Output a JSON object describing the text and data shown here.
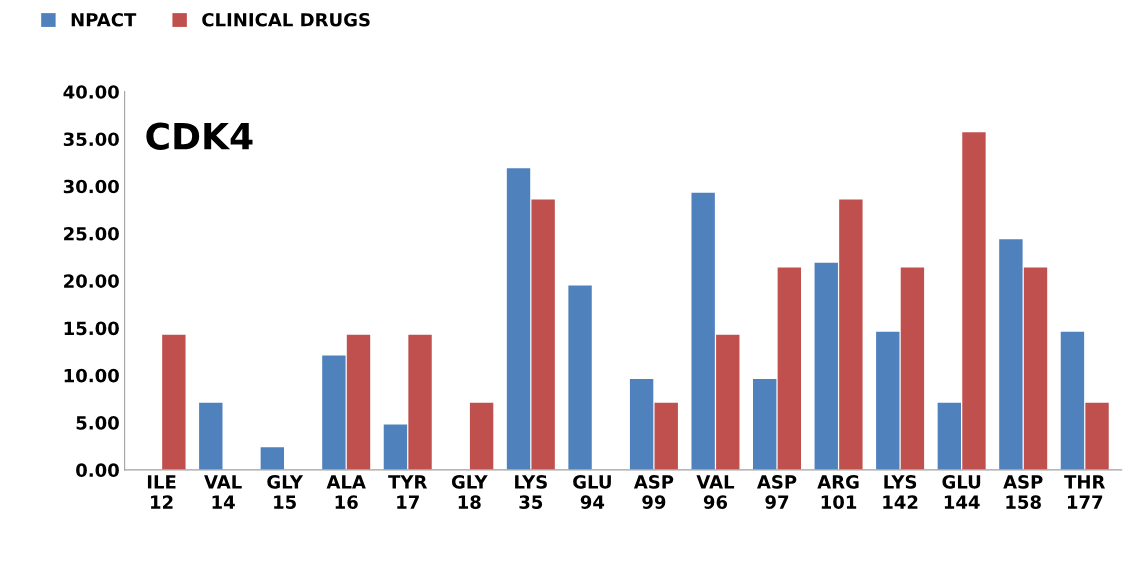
{
  "chart_data": {
    "type": "bar",
    "title": "CDK4",
    "categories": [
      "ILE\n12",
      "VAL\n14",
      "GLY\n15",
      "ALA\n16",
      "TYR\n17",
      "GLY\n18",
      "LYS\n35",
      "GLU\n94",
      "ASP\n99",
      "VAL\n96",
      "ASP\n97",
      "ARG\n101",
      "LYS\n142",
      "GLU\n144",
      "ASP\n158",
      "THR\n177"
    ],
    "series": [
      {
        "name": "NPACT",
        "color": "#4f81bd",
        "values": [
          0,
          7.1,
          2.4,
          12.1,
          4.8,
          0,
          31.9,
          19.5,
          9.6,
          29.3,
          9.6,
          21.9,
          14.6,
          7.1,
          24.4,
          14.6
        ]
      },
      {
        "name": "CLINICAL DRUGS",
        "color": "#c0504d",
        "values": [
          14.3,
          0,
          0,
          14.3,
          14.3,
          7.1,
          28.6,
          0,
          7.1,
          14.3,
          21.4,
          28.6,
          21.4,
          35.7,
          21.4,
          7.1
        ]
      }
    ],
    "ylim": [
      0,
      40
    ],
    "yticks": [
      {
        "value": 0,
        "label": "0.00"
      },
      {
        "value": 5,
        "label": "5.00"
      },
      {
        "value": 10,
        "label": "10.00"
      },
      {
        "value": 15,
        "label": "15.00"
      },
      {
        "value": 20,
        "label": "20.00"
      },
      {
        "value": 25,
        "label": "25.00"
      },
      {
        "value": 30,
        "label": "30.00"
      },
      {
        "value": 35,
        "label": "35.00"
      },
      {
        "value": 40,
        "label": "40.00"
      }
    ],
    "grid": false,
    "legend": "top left"
  }
}
